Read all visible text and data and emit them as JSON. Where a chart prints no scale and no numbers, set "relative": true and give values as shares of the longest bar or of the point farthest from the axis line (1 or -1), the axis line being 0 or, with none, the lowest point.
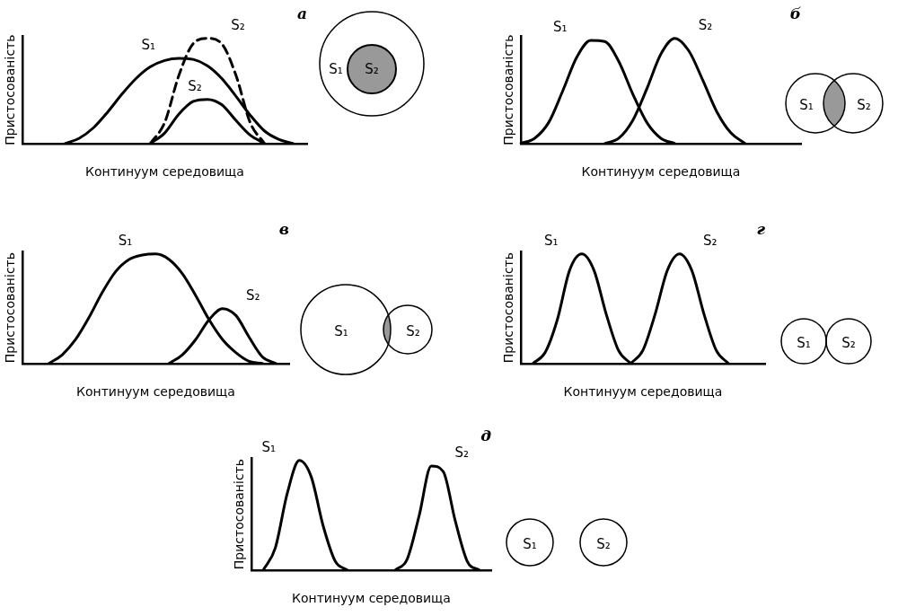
{
  "chart_data": [
    {
      "type": "line",
      "title": "а",
      "xlabel": "Континуум середовища",
      "ylabel": "Пристосованість",
      "relative": true,
      "grid": false,
      "legend": false,
      "marker": "none",
      "categories": [
        null,
        null,
        null,
        null,
        null,
        null,
        null,
        null,
        null,
        null,
        null,
        null,
        null,
        null,
        null,
        null,
        null,
        null,
        null,
        null,
        null
      ],
      "series": [
        {
          "name": "S₁",
          "color": "#000000",
          "line_style": "solid",
          "values": [
            null,
            null,
            null,
            0,
            0.05,
            0.15,
            0.3,
            0.47,
            0.62,
            0.73,
            0.79,
            0.81,
            0.8,
            0.74,
            0.62,
            0.45,
            0.27,
            0.12,
            0.04,
            0,
            null
          ]
        },
        {
          "name": "S₂",
          "color": "#000000",
          "line_style": "dashed",
          "values": [
            null,
            null,
            null,
            null,
            null,
            null,
            null,
            null,
            null,
            0,
            0.2,
            0.65,
            0.95,
            1,
            0.95,
            0.65,
            0.2,
            0,
            null,
            null,
            null
          ]
        },
        {
          "name": "S₂",
          "color": "#000000",
          "line_style": "solid",
          "values": [
            null,
            null,
            null,
            null,
            null,
            null,
            null,
            null,
            null,
            0,
            0.1,
            0.28,
            0.4,
            0.42,
            0.37,
            0.22,
            0.08,
            0,
            null,
            null,
            null
          ]
        }
      ],
      "annotations": [
        "S₁",
        "S₂"
      ]
    },
    {
      "type": "line",
      "title": "б",
      "xlabel": "Континуум середовища",
      "ylabel": "Пристосованість",
      "relative": true,
      "grid": false,
      "legend": false,
      "marker": "none",
      "categories": [
        null,
        null,
        null,
        null,
        null,
        null,
        null,
        null,
        null,
        null,
        null,
        null,
        null,
        null,
        null,
        null,
        null,
        null,
        null,
        null,
        null
      ],
      "series": [
        {
          "name": "S₁",
          "color": "#000000",
          "line_style": "solid",
          "values": [
            0,
            0.05,
            0.2,
            0.5,
            0.82,
            0.98,
            0.97,
            0.78,
            0.47,
            0.2,
            0.05,
            0,
            null,
            null,
            null,
            null,
            null,
            null,
            null,
            null,
            null
          ]
        },
        {
          "name": "S₂",
          "color": "#000000",
          "line_style": "solid",
          "values": [
            null,
            null,
            null,
            null,
            null,
            null,
            0,
            0.05,
            0.22,
            0.52,
            0.85,
            1,
            0.88,
            0.6,
            0.3,
            0.1,
            0,
            null,
            null,
            null,
            null
          ]
        }
      ],
      "annotations": [
        "S₁",
        "S₂"
      ]
    },
    {
      "type": "line",
      "title": "в",
      "xlabel": "Континуум середовища",
      "ylabel": "Пристосованість",
      "relative": true,
      "grid": false,
      "legend": false,
      "marker": "none",
      "categories": [
        null,
        null,
        null,
        null,
        null,
        null,
        null,
        null,
        null,
        null,
        null,
        null,
        null,
        null,
        null,
        null,
        null,
        null,
        null,
        null,
        null
      ],
      "series": [
        {
          "name": "S₁",
          "color": "#000000",
          "line_style": "solid",
          "values": [
            null,
            null,
            0,
            0.08,
            0.22,
            0.42,
            0.65,
            0.84,
            0.95,
            0.99,
            1,
            0.95,
            0.82,
            0.62,
            0.4,
            0.22,
            0.1,
            0.02,
            0,
            null,
            null
          ]
        },
        {
          "name": "S₂",
          "color": "#000000",
          "line_style": "solid",
          "values": [
            null,
            null,
            null,
            null,
            null,
            null,
            null,
            null,
            null,
            null,
            null,
            0,
            0.08,
            0.22,
            0.4,
            0.5,
            0.44,
            0.24,
            0.06,
            0,
            null
          ]
        }
      ],
      "annotations": [
        "S₁",
        "S₂"
      ]
    },
    {
      "type": "line",
      "title": "г",
      "xlabel": "Континуум середовища",
      "ylabel": "Пристосованість",
      "relative": true,
      "grid": false,
      "legend": false,
      "marker": "none",
      "categories": [
        null,
        null,
        null,
        null,
        null,
        null,
        null,
        null,
        null,
        null,
        null,
        null,
        null,
        null,
        null,
        null,
        null,
        null,
        null,
        null,
        null
      ],
      "series": [
        {
          "name": "S₁",
          "color": "#000000",
          "line_style": "solid",
          "values": [
            null,
            0,
            0.1,
            0.4,
            0.85,
            1,
            0.85,
            0.45,
            0.12,
            0,
            null,
            null,
            null,
            null,
            null,
            null,
            null,
            null,
            null,
            null,
            null
          ]
        },
        {
          "name": "S₂",
          "color": "#000000",
          "line_style": "solid",
          "values": [
            null,
            null,
            null,
            null,
            null,
            null,
            null,
            null,
            null,
            0,
            0.12,
            0.45,
            0.85,
            1,
            0.85,
            0.45,
            0.12,
            0,
            null,
            null,
            null
          ]
        }
      ],
      "annotations": [
        "S₁",
        "S₂"
      ]
    },
    {
      "type": "line",
      "title": "д",
      "xlabel": "Континуум середовища",
      "ylabel": "Пристосованість",
      "relative": true,
      "grid": false,
      "legend": false,
      "marker": "none",
      "categories": [
        null,
        null,
        null,
        null,
        null,
        null,
        null,
        null,
        null,
        null,
        null,
        null,
        null,
        null,
        null,
        null,
        null,
        null,
        null,
        null,
        null
      ],
      "series": [
        {
          "name": "S₁",
          "color": "#000000",
          "line_style": "solid",
          "values": [
            null,
            0,
            0.2,
            0.7,
            1,
            0.85,
            0.4,
            0.08,
            0,
            null,
            null,
            null,
            null,
            null,
            null,
            null,
            null,
            null,
            null,
            null,
            null
          ]
        },
        {
          "name": "S₂",
          "color": "#000000",
          "line_style": "solid",
          "values": [
            null,
            null,
            null,
            null,
            null,
            null,
            null,
            null,
            null,
            null,
            null,
            null,
            0,
            0.1,
            0.5,
            0.95,
            0.9,
            0.45,
            0.08,
            0,
            null
          ]
        }
      ],
      "annotations": [
        "S₁",
        "S₂"
      ]
    }
  ]
}
